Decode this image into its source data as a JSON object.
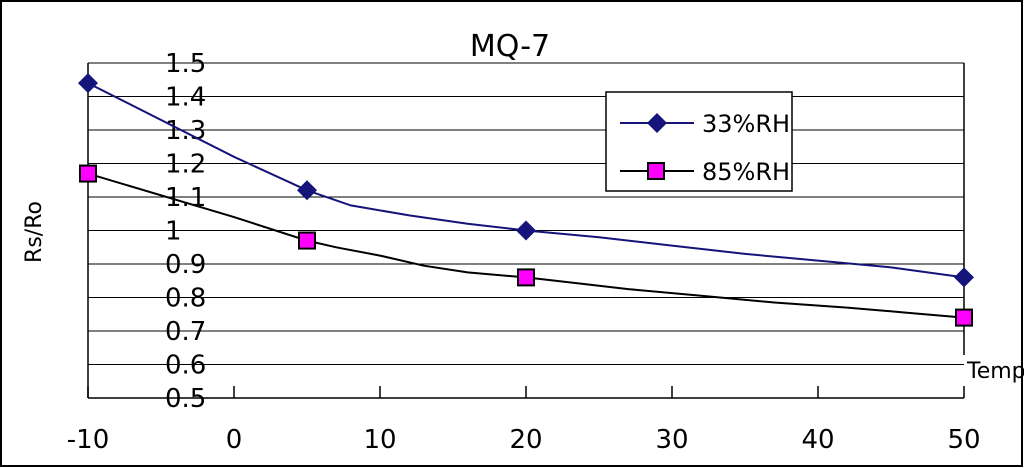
{
  "chart_data": {
    "type": "line",
    "title": "MQ-7",
    "ylabel": "Rs/Ro",
    "xlabel": "Temp",
    "xlim": [
      -10,
      50
    ],
    "ylim": [
      0.5,
      1.5
    ],
    "x_ticks": [
      "-10",
      "0",
      "10",
      "20",
      "30",
      "40",
      "50"
    ],
    "y_ticks": [
      "0.5",
      "0.6",
      "0.7",
      "0.8",
      "0.9",
      "1",
      "1.1",
      "1.2",
      "1.3",
      "1.4",
      "1.5"
    ],
    "grid": "horizontal",
    "legend_position": "top-right",
    "series": [
      {
        "name": "33%RH",
        "color": "#14147a",
        "marker": "diamond",
        "marker_color": "#14147a",
        "points": [
          [
            -10,
            1.44
          ],
          [
            5,
            1.12
          ],
          [
            20,
            1.0
          ],
          [
            50,
            0.86
          ]
        ],
        "curve": [
          [
            -10,
            1.44
          ],
          [
            0,
            1.22
          ],
          [
            5,
            1.12
          ],
          [
            8,
            1.075
          ],
          [
            12,
            1.045
          ],
          [
            16,
            1.02
          ],
          [
            20,
            1.0
          ],
          [
            25,
            0.98
          ],
          [
            30,
            0.955
          ],
          [
            35,
            0.93
          ],
          [
            40,
            0.91
          ],
          [
            45,
            0.89
          ],
          [
            50,
            0.86
          ]
        ]
      },
      {
        "name": "85%RH",
        "color": "#000000",
        "marker": "square",
        "marker_color": "#ff00ff",
        "points": [
          [
            -10,
            1.17
          ],
          [
            5,
            0.97
          ],
          [
            20,
            0.86
          ],
          [
            50,
            0.74
          ]
        ],
        "curve": [
          [
            -10,
            1.17
          ],
          [
            0,
            1.04
          ],
          [
            5,
            0.97
          ],
          [
            7,
            0.95
          ],
          [
            10,
            0.925
          ],
          [
            13,
            0.895
          ],
          [
            16,
            0.875
          ],
          [
            20,
            0.86
          ],
          [
            23,
            0.845
          ],
          [
            27,
            0.825
          ],
          [
            32,
            0.805
          ],
          [
            37,
            0.785
          ],
          [
            42,
            0.77
          ],
          [
            46,
            0.755
          ],
          [
            50,
            0.74
          ]
        ]
      }
    ]
  }
}
